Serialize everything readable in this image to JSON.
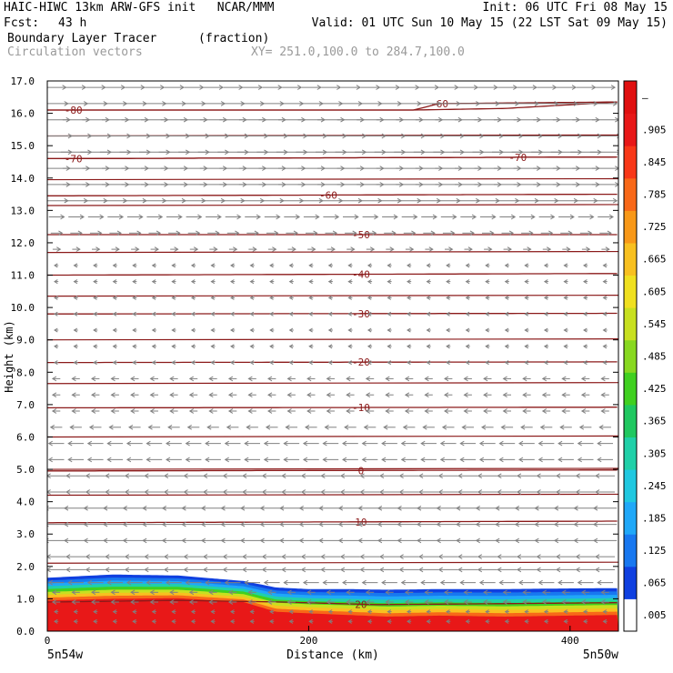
{
  "header": {
    "title_left": "HAIC-HIWC 13km ARW-GFS init   NCAR/MMM",
    "init": "Init: 06 UTC Fri 08 May 15",
    "fcst_label": "Fcst:",
    "fcst_value": "43 h",
    "valid": "Valid: 01 UTC Sun 10 May 15 (22 LST Sat 09 May 15)",
    "field_name": "Boundary Layer Tracer",
    "field_units": "(fraction)",
    "vector_label": "Circulation vectors",
    "xy_label": "XY= 251.0,100.0 to 284.7,100.0"
  },
  "colors": {
    "contour": "#8b1a1a",
    "vector": "#808080",
    "frame": "#000000"
  },
  "chart_data": {
    "type": "heatmap",
    "xlabel": "Distance (km)",
    "ylabel": "Height (km)",
    "xlim": [
      0,
      437
    ],
    "ylim": [
      0,
      17
    ],
    "x_ticks": [
      0,
      200,
      400
    ],
    "y_ticks": [
      "0.0",
      "1.0",
      "2.0",
      "3.0",
      "4.0",
      "5.0",
      "6.0",
      "7.0",
      "8.0",
      "9.0",
      "10.0",
      "11.0",
      "12.0",
      "13.0",
      "14.0",
      "15.0",
      "16.0",
      "17.0"
    ],
    "x_start_label": "5n54w",
    "x_end_label": "5n50w",
    "colorbar": {
      "labels": [
        ".005",
        ".065",
        ".125",
        ".185",
        ".245",
        ".305",
        ".365",
        ".425",
        ".485",
        ".545",
        ".605",
        ".665",
        ".725",
        ".785",
        ".845",
        ".905",
        "–"
      ],
      "colors": [
        "#ffffff",
        "#1040e0",
        "#1878f0",
        "#20a8f8",
        "#20c8e0",
        "#20d0a8",
        "#20c860",
        "#40d020",
        "#88d820",
        "#c8e020",
        "#f0e020",
        "#f8c020",
        "#f89818",
        "#f86818",
        "#f83818",
        "#e81818",
        "#e01010"
      ]
    },
    "pbl_tracer_top_km": {
      "x": [
        0,
        50,
        100,
        150,
        175,
        200,
        230,
        260,
        300,
        350,
        400,
        437
      ],
      "outer": [
        1.65,
        1.75,
        1.72,
        1.55,
        1.35,
        1.3,
        1.3,
        1.28,
        1.3,
        1.3,
        1.32,
        1.33
      ],
      "red": [
        0.95,
        1.0,
        1.02,
        0.9,
        0.6,
        0.55,
        0.5,
        0.45,
        0.48,
        0.45,
        0.48,
        0.5
      ]
    },
    "temperature_contours": [
      {
        "label": "20",
        "x": [
          0,
          100,
          180,
          250,
          350,
          437
        ],
        "y": [
          0.9,
          0.95,
          0.9,
          0.82,
          0.85,
          0.88
        ],
        "label_x": 240
      },
      {
        "label": "10",
        "x": [
          0,
          437
        ],
        "y": [
          3.35,
          3.4
        ],
        "label_x": 240
      },
      {
        "label": "0",
        "x": [
          0,
          437
        ],
        "y": [
          4.95,
          4.98
        ],
        "label_x": 240
      },
      {
        "label": "-10",
        "x": [
          0,
          437
        ],
        "y": [
          6.9,
          6.92
        ],
        "label_x": 240
      },
      {
        "label": "-20",
        "x": [
          0,
          437
        ],
        "y": [
          8.3,
          8.32
        ],
        "label_x": 240
      },
      {
        "label": "-30",
        "x": [
          0,
          437
        ],
        "y": [
          9.8,
          9.82
        ],
        "label_x": 240
      },
      {
        "label": "-40",
        "x": [
          0,
          437
        ],
        "y": [
          11.0,
          11.05
        ],
        "label_x": 240
      },
      {
        "label": "-50",
        "x": [
          0,
          437
        ],
        "y": [
          12.25,
          12.25
        ],
        "label_x": 240
      },
      {
        "label": "-60",
        "x": [
          0,
          437
        ],
        "y": [
          13.45,
          13.5
        ],
        "label_x": 215
      },
      {
        "label": "-70",
        "x": [
          0,
          437
        ],
        "y": [
          14.6,
          14.65
        ],
        "label_x": 20
      },
      {
        "label": "-70",
        "x": [
          0,
          437
        ],
        "y": [
          14.6,
          14.65
        ],
        "label_x": 360
      },
      {
        "label": "-80",
        "x": [
          0,
          280,
          350,
          437
        ],
        "y": [
          16.1,
          16.1,
          16.15,
          16.35
        ],
        "label_x": 20
      },
      {
        "label": "-60",
        "x": [
          0,
          280,
          300,
          437
        ],
        "y": [
          16.1,
          16.1,
          16.3,
          16.35
        ],
        "label_x": 300
      }
    ],
    "isotherm_lines_km": [
      13.15,
      13.95,
      15.3,
      11.7,
      10.35,
      9.0,
      7.65,
      6.0,
      5.0,
      4.2,
      2.1
    ],
    "wind_vectors": {
      "x_step_km": 15,
      "levels_km": [
        0.3,
        0.6,
        0.9,
        1.2,
        1.5,
        1.9,
        2.3,
        2.8,
        3.3,
        3.8,
        4.3,
        4.8,
        5.3,
        5.8,
        6.3,
        6.8,
        7.3,
        7.8,
        8.3,
        8.8,
        9.3,
        9.8,
        10.3,
        10.8,
        11.3,
        11.8,
        12.3,
        12.8,
        13.3,
        13.8,
        14.3,
        14.8,
        15.3,
        15.8,
        16.3,
        16.8
      ],
      "u_ms": [
        -1,
        -1,
        -2,
        -2,
        -4,
        -5,
        -5,
        -6,
        -6,
        -6,
        -5,
        -5,
        -4,
        -4,
        -3,
        -2,
        -2,
        -2,
        -1,
        -1,
        -1,
        -1,
        -1,
        -1,
        -1,
        2,
        3,
        4,
        6,
        7,
        7,
        8,
        8,
        7,
        6,
        5
      ]
    }
  }
}
